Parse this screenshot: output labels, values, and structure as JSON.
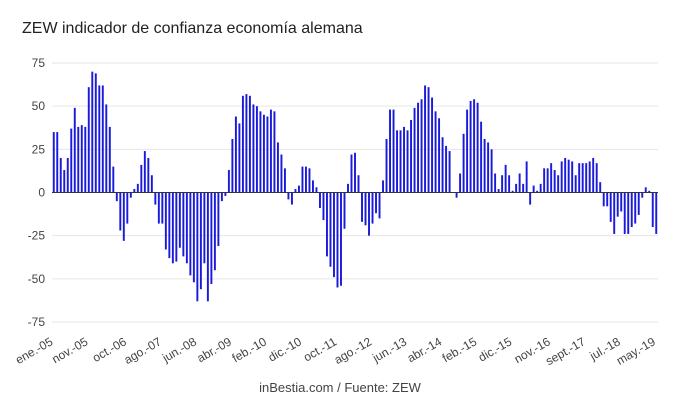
{
  "chart_data": {
    "type": "bar",
    "title": "ZEW indicador de confianza economía alemana",
    "source": "inBestia.com / Fuente: ZEW",
    "xlabel": "",
    "ylabel": "",
    "ylim": [
      -75,
      75
    ],
    "yticks": [
      75,
      50,
      25,
      0,
      -25,
      -50,
      -75
    ],
    "grid": true,
    "bar_color": "#1a1adb",
    "start_month": "2005-01",
    "end_month": "2019-05",
    "x_tick_labels": [
      "ene.-05",
      "nov.-05",
      "oct.-06",
      "ago.-07",
      "jun.-08",
      "abr.-09",
      "feb.-10",
      "dic.-10",
      "oct.-11",
      "ago.-12",
      "jun.-13",
      "abr.-14",
      "feb.-15",
      "dic.-15",
      "nov.-16",
      "sept.-17",
      "jul.-18",
      "may.-19"
    ],
    "x_tick_months": [
      "2005-01",
      "2005-11",
      "2006-10",
      "2007-08",
      "2008-06",
      "2009-04",
      "2010-02",
      "2010-12",
      "2011-10",
      "2012-08",
      "2013-06",
      "2014-04",
      "2015-02",
      "2015-12",
      "2016-11",
      "2017-09",
      "2018-07",
      "2019-05"
    ],
    "values": [
      35,
      35,
      20,
      13,
      20,
      37,
      49,
      38,
      39,
      38,
      61,
      70,
      69,
      62,
      62,
      51,
      38,
      15,
      -5,
      -22,
      -28,
      -18,
      -3,
      2,
      5,
      16,
      24,
      20,
      10,
      -7,
      -18,
      -18,
      -33,
      -38,
      -41,
      -40,
      -32,
      -37,
      -41,
      -48,
      -52,
      -63,
      -56,
      -41,
      -63,
      -53,
      -45,
      -31,
      -5,
      -2,
      13,
      31,
      44,
      40,
      56,
      57,
      56,
      51,
      50,
      47,
      45,
      44,
      48,
      47,
      29,
      22,
      14,
      -4,
      -7,
      2,
      4,
      15,
      15,
      14,
      7,
      3,
      -9,
      -16,
      -37,
      -43,
      -49,
      -55,
      -54,
      -21,
      5,
      22,
      23,
      10,
      -17,
      -19,
      -25,
      -18,
      -12,
      -15,
      7,
      31,
      48,
      48,
      36,
      36,
      38,
      36,
      42,
      49,
      52,
      54,
      62,
      61,
      55,
      47,
      43,
      32,
      27,
      24,
      0,
      -3,
      11,
      34,
      48,
      53,
      54,
      52,
      41,
      31,
      29,
      25,
      11,
      2,
      10,
      16,
      10,
      1,
      5,
      11,
      5,
      18,
      -7,
      4,
      1,
      5,
      14,
      14,
      17,
      13,
      10,
      18,
      20,
      19,
      18,
      10,
      17,
      17,
      17,
      18,
      20,
      17,
      6,
      -8,
      -8,
      -17,
      -24,
      -14,
      -11,
      -24,
      -24,
      -20,
      -18,
      -13,
      -3,
      3,
      1,
      -20,
      -24
    ]
  }
}
